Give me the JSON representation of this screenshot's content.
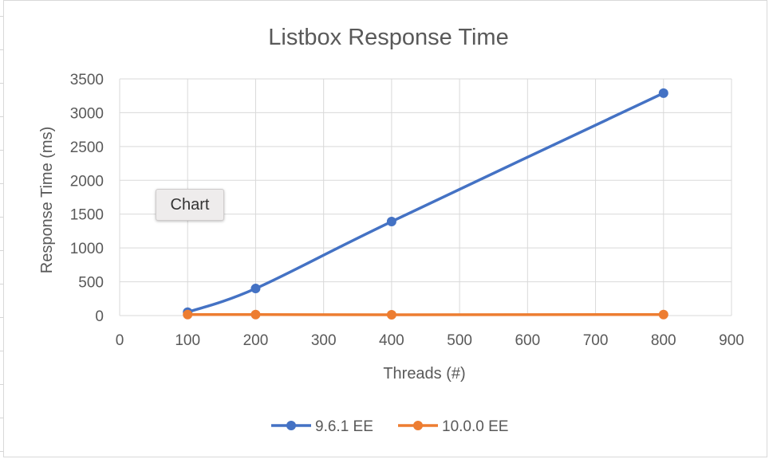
{
  "chart_data": {
    "type": "line",
    "title": "Listbox Response Time",
    "xlabel": "Threads (#)",
    "ylabel": "Response Time (ms)",
    "xlim": [
      0,
      900
    ],
    "ylim": [
      0,
      3500
    ],
    "x_ticks": [
      0,
      100,
      200,
      300,
      400,
      500,
      600,
      700,
      800,
      900
    ],
    "y_ticks": [
      0,
      500,
      1000,
      1500,
      2000,
      2500,
      3000,
      3500
    ],
    "grid": true,
    "legend_position": "bottom",
    "x": [
      100,
      200,
      400,
      800
    ],
    "series": [
      {
        "name": "9.6.1 EE",
        "color": "#4472c4",
        "values": [
          50,
          400,
          1390,
          3290
        ]
      },
      {
        "name": "10.0.0 EE",
        "color": "#ed7d31",
        "values": [
          15,
          15,
          12,
          15
        ]
      }
    ]
  },
  "tooltip": {
    "label": "Chart"
  }
}
